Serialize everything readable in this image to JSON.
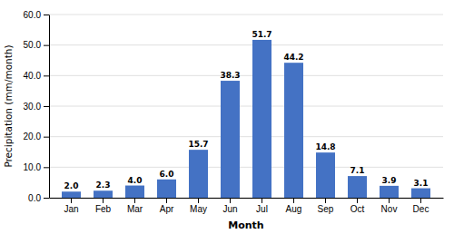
{
  "chart_data": {
    "type": "bar",
    "categories": [
      "Jan",
      "Feb",
      "Mar",
      "Apr",
      "May",
      "Jun",
      "Jul",
      "Aug",
      "Sep",
      "Oct",
      "Nov",
      "Dec"
    ],
    "values": [
      2.0,
      2.3,
      4.0,
      6.0,
      15.7,
      38.3,
      51.7,
      44.2,
      14.8,
      7.1,
      3.9,
      3.1
    ],
    "value_labels": [
      "2.0",
      "2.3",
      "4.0",
      "6.0",
      "15.7",
      "38.3",
      "51.7",
      "44.2",
      "14.8",
      "7.1",
      "3.9",
      "3.1"
    ],
    "data_labels": true,
    "color": "#4472C4",
    "xlabel": "Month",
    "ylabel": "Precipitation (mm/month)",
    "ylim": [
      0,
      60
    ],
    "yticks": [
      {
        "value": 0,
        "label": "0.0"
      },
      {
        "value": 10,
        "label": "10.0"
      },
      {
        "value": 20,
        "label": "20.0"
      },
      {
        "value": 30,
        "label": "30.0"
      },
      {
        "value": 40,
        "label": "40.0"
      },
      {
        "value": 50,
        "label": "50.0"
      },
      {
        "value": 60,
        "label": "60.0"
      }
    ],
    "grid": true
  }
}
